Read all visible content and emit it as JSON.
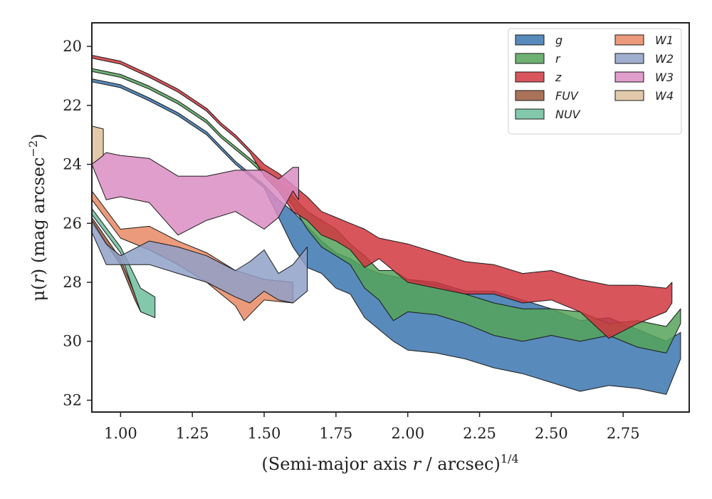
{
  "chart_data": {
    "type": "area",
    "xlabel_prefix": "(Semi-major axis ",
    "xlabel_var": "r",
    "xlabel_suffix": " / arcsec)",
    "xlabel_sup": "1/4",
    "ylabel_prefix": "μ(",
    "ylabel_var": "r",
    "ylabel_suffix": ") (mag arcsec",
    "ylabel_sup": "−2",
    "ylabel_close": ")",
    "xlim": [
      0.9,
      2.98
    ],
    "ylim": [
      32.4,
      19.2
    ],
    "y_inverted": true,
    "xticks": [
      1.0,
      1.25,
      1.5,
      1.75,
      2.0,
      2.25,
      2.5,
      2.75
    ],
    "xtick_labels": [
      "1.00",
      "1.25",
      "1.50",
      "1.75",
      "2.00",
      "2.25",
      "2.50",
      "2.75"
    ],
    "yticks": [
      20,
      22,
      24,
      26,
      28,
      30,
      32
    ],
    "ytick_labels": [
      "20",
      "22",
      "24",
      "26",
      "28",
      "30",
      "32"
    ],
    "grid": false,
    "legend_position": "top-right",
    "legend_columns": 2,
    "series": [
      {
        "name": "g",
        "color": "#3b75af",
        "upper": [
          [
            0.9,
            21.1
          ],
          [
            1.0,
            21.3
          ],
          [
            1.1,
            21.75
          ],
          [
            1.2,
            22.25
          ],
          [
            1.3,
            22.9
          ],
          [
            1.35,
            23.4
          ],
          [
            1.4,
            23.9
          ],
          [
            1.45,
            24.3
          ],
          [
            1.5,
            24.7
          ],
          [
            1.55,
            25.2
          ],
          [
            1.6,
            25.6
          ],
          [
            1.65,
            26.1
          ],
          [
            1.7,
            26.6
          ],
          [
            1.75,
            27.0
          ],
          [
            1.8,
            27.2
          ],
          [
            1.85,
            27.5
          ],
          [
            1.9,
            27.7
          ],
          [
            1.95,
            27.8
          ],
          [
            2.0,
            27.9
          ],
          [
            2.1,
            28.0
          ],
          [
            2.2,
            28.3
          ],
          [
            2.3,
            28.3
          ],
          [
            2.4,
            28.6
          ],
          [
            2.5,
            28.9
          ],
          [
            2.6,
            29.3
          ],
          [
            2.7,
            29.2
          ],
          [
            2.8,
            29.6
          ],
          [
            2.9,
            30.0
          ],
          [
            2.95,
            29.7
          ]
        ],
        "lower": [
          [
            0.9,
            21.2
          ],
          [
            1.0,
            21.4
          ],
          [
            1.1,
            21.85
          ],
          [
            1.2,
            22.35
          ],
          [
            1.3,
            23.0
          ],
          [
            1.35,
            23.5
          ],
          [
            1.4,
            24.0
          ],
          [
            1.45,
            24.4
          ],
          [
            1.5,
            24.8
          ],
          [
            1.55,
            25.8
          ],
          [
            1.6,
            26.8
          ],
          [
            1.65,
            27.5
          ],
          [
            1.7,
            27.7
          ],
          [
            1.75,
            28.2
          ],
          [
            1.8,
            28.4
          ],
          [
            1.85,
            29.2
          ],
          [
            1.9,
            29.6
          ],
          [
            1.95,
            30.0
          ],
          [
            2.0,
            30.3
          ],
          [
            2.1,
            30.4
          ],
          [
            2.2,
            30.6
          ],
          [
            2.3,
            30.9
          ],
          [
            2.4,
            31.1
          ],
          [
            2.5,
            31.4
          ],
          [
            2.6,
            31.7
          ],
          [
            2.7,
            31.5
          ],
          [
            2.8,
            31.6
          ],
          [
            2.9,
            31.8
          ],
          [
            2.95,
            30.6
          ]
        ]
      },
      {
        "name": "r",
        "color": "#55a35a",
        "upper": [
          [
            0.9,
            20.75
          ],
          [
            1.0,
            20.95
          ],
          [
            1.1,
            21.35
          ],
          [
            1.2,
            21.85
          ],
          [
            1.3,
            22.5
          ],
          [
            1.35,
            23.0
          ],
          [
            1.4,
            23.4
          ],
          [
            1.45,
            23.8
          ],
          [
            1.5,
            24.2
          ],
          [
            1.55,
            24.6
          ],
          [
            1.6,
            25.1
          ],
          [
            1.65,
            25.6
          ],
          [
            1.7,
            25.9
          ],
          [
            1.75,
            26.2
          ],
          [
            1.8,
            26.7
          ],
          [
            1.85,
            27.1
          ],
          [
            1.9,
            27.6
          ],
          [
            1.95,
            27.6
          ],
          [
            2.0,
            27.9
          ],
          [
            2.1,
            28.1
          ],
          [
            2.2,
            28.4
          ],
          [
            2.3,
            28.7
          ],
          [
            2.4,
            28.9
          ],
          [
            2.5,
            28.9
          ],
          [
            2.6,
            29.0
          ],
          [
            2.7,
            29.4
          ],
          [
            2.8,
            29.3
          ],
          [
            2.9,
            29.5
          ],
          [
            2.95,
            28.9
          ]
        ],
        "lower": [
          [
            0.9,
            20.85
          ],
          [
            1.0,
            21.05
          ],
          [
            1.1,
            21.45
          ],
          [
            1.2,
            21.95
          ],
          [
            1.3,
            22.6
          ],
          [
            1.35,
            23.1
          ],
          [
            1.4,
            23.5
          ],
          [
            1.45,
            23.9
          ],
          [
            1.5,
            24.35
          ],
          [
            1.55,
            24.8
          ],
          [
            1.6,
            25.4
          ],
          [
            1.65,
            26.2
          ],
          [
            1.7,
            26.8
          ],
          [
            1.75,
            27.1
          ],
          [
            1.8,
            27.4
          ],
          [
            1.85,
            28.2
          ],
          [
            1.9,
            28.6
          ],
          [
            1.95,
            29.3
          ],
          [
            2.0,
            29.0
          ],
          [
            2.1,
            29.1
          ],
          [
            2.2,
            29.4
          ],
          [
            2.3,
            29.8
          ],
          [
            2.4,
            30.0
          ],
          [
            2.5,
            29.8
          ],
          [
            2.6,
            30.0
          ],
          [
            2.7,
            29.8
          ],
          [
            2.8,
            30.2
          ],
          [
            2.9,
            30.4
          ],
          [
            2.95,
            29.4
          ]
        ]
      },
      {
        "name": "z",
        "color": "#d1373f",
        "upper": [
          [
            0.9,
            20.3
          ],
          [
            1.0,
            20.5
          ],
          [
            1.1,
            20.95
          ],
          [
            1.2,
            21.45
          ],
          [
            1.3,
            22.1
          ],
          [
            1.35,
            22.6
          ],
          [
            1.4,
            23.0
          ],
          [
            1.45,
            23.5
          ],
          [
            1.5,
            24.0
          ],
          [
            1.55,
            24.3
          ],
          [
            1.6,
            24.7
          ],
          [
            1.65,
            25.1
          ],
          [
            1.7,
            25.6
          ],
          [
            1.75,
            25.8
          ],
          [
            1.8,
            26.0
          ],
          [
            1.85,
            26.2
          ],
          [
            1.9,
            26.5
          ],
          [
            1.95,
            26.6
          ],
          [
            2.0,
            26.7
          ],
          [
            2.1,
            27.0
          ],
          [
            2.2,
            27.3
          ],
          [
            2.3,
            27.4
          ],
          [
            2.4,
            27.7
          ],
          [
            2.5,
            27.6
          ],
          [
            2.6,
            27.9
          ],
          [
            2.7,
            28.1
          ],
          [
            2.8,
            28.1
          ],
          [
            2.9,
            28.2
          ],
          [
            2.92,
            28.0
          ]
        ],
        "lower": [
          [
            0.9,
            20.4
          ],
          [
            1.0,
            20.6
          ],
          [
            1.1,
            21.05
          ],
          [
            1.2,
            21.55
          ],
          [
            1.3,
            22.2
          ],
          [
            1.35,
            22.7
          ],
          [
            1.4,
            23.1
          ],
          [
            1.45,
            23.6
          ],
          [
            1.5,
            24.4
          ],
          [
            1.55,
            24.9
          ],
          [
            1.6,
            25.6
          ],
          [
            1.65,
            25.9
          ],
          [
            1.7,
            26.4
          ],
          [
            1.75,
            26.6
          ],
          [
            1.8,
            26.9
          ],
          [
            1.85,
            27.5
          ],
          [
            1.9,
            27.2
          ],
          [
            1.95,
            27.6
          ],
          [
            2.0,
            28.0
          ],
          [
            2.1,
            28.2
          ],
          [
            2.2,
            28.4
          ],
          [
            2.3,
            28.4
          ],
          [
            2.4,
            28.7
          ],
          [
            2.5,
            28.6
          ],
          [
            2.6,
            29.0
          ],
          [
            2.7,
            29.9
          ],
          [
            2.8,
            29.4
          ],
          [
            2.9,
            29.0
          ],
          [
            2.92,
            28.7
          ]
        ]
      },
      {
        "name": "FUV",
        "color": "#9b5a3c",
        "upper": [
          [
            0.9,
            25.8
          ],
          [
            1.0,
            27.2
          ],
          [
            1.05,
            28.4
          ],
          [
            1.07,
            29.0
          ]
        ],
        "lower": [
          [
            0.9,
            26.0
          ],
          [
            1.0,
            27.4
          ],
          [
            1.05,
            28.6
          ],
          [
            1.07,
            29.0
          ]
        ]
      },
      {
        "name": "NUV",
        "color": "#6ebe9e",
        "upper": [
          [
            0.9,
            25.5
          ],
          [
            1.0,
            26.8
          ],
          [
            1.07,
            28.2
          ],
          [
            1.12,
            28.5
          ]
        ],
        "lower": [
          [
            0.9,
            25.7
          ],
          [
            1.0,
            27.0
          ],
          [
            1.07,
            29.0
          ],
          [
            1.12,
            29.2
          ]
        ]
      },
      {
        "name": "W1",
        "color": "#e88a64",
        "upper": [
          [
            0.9,
            24.9
          ],
          [
            1.0,
            26.2
          ],
          [
            1.1,
            26.1
          ],
          [
            1.2,
            26.6
          ],
          [
            1.3,
            27.0
          ],
          [
            1.4,
            27.6
          ],
          [
            1.5,
            27.9
          ],
          [
            1.6,
            28.0
          ]
        ],
        "lower": [
          [
            0.9,
            25.2
          ],
          [
            1.0,
            26.5
          ],
          [
            1.1,
            26.9
          ],
          [
            1.2,
            27.4
          ],
          [
            1.3,
            28.0
          ],
          [
            1.4,
            28.8
          ],
          [
            1.43,
            29.3
          ],
          [
            1.5,
            28.6
          ],
          [
            1.6,
            28.7
          ]
        ]
      },
      {
        "name": "W2",
        "color": "#8fa0c8",
        "upper": [
          [
            0.9,
            25.9
          ],
          [
            0.95,
            26.7
          ],
          [
            1.0,
            27.1
          ],
          [
            1.1,
            26.6
          ],
          [
            1.2,
            26.8
          ],
          [
            1.3,
            27.1
          ],
          [
            1.4,
            27.6
          ],
          [
            1.45,
            27.3
          ],
          [
            1.5,
            26.9
          ],
          [
            1.55,
            27.7
          ],
          [
            1.6,
            27.4
          ],
          [
            1.65,
            26.8
          ]
        ],
        "lower": [
          [
            0.9,
            26.3
          ],
          [
            0.95,
            27.4
          ],
          [
            1.0,
            27.4
          ],
          [
            1.1,
            27.4
          ],
          [
            1.2,
            27.7
          ],
          [
            1.3,
            28.0
          ],
          [
            1.4,
            28.5
          ],
          [
            1.45,
            28.7
          ],
          [
            1.5,
            28.3
          ],
          [
            1.55,
            28.6
          ],
          [
            1.6,
            28.7
          ],
          [
            1.65,
            28.3
          ]
        ]
      },
      {
        "name": "W3",
        "color": "#da8dc3",
        "upper": [
          [
            0.9,
            24.0
          ],
          [
            0.95,
            23.6
          ],
          [
            1.0,
            23.7
          ],
          [
            1.1,
            23.8
          ],
          [
            1.2,
            24.4
          ],
          [
            1.3,
            24.4
          ],
          [
            1.4,
            24.2
          ],
          [
            1.5,
            24.2
          ],
          [
            1.55,
            24.5
          ],
          [
            1.6,
            24.1
          ],
          [
            1.62,
            24.1
          ]
        ],
        "lower": [
          [
            0.9,
            24.0
          ],
          [
            0.95,
            25.2
          ],
          [
            1.0,
            25.1
          ],
          [
            1.1,
            25.3
          ],
          [
            1.2,
            26.4
          ],
          [
            1.3,
            25.9
          ],
          [
            1.4,
            25.6
          ],
          [
            1.5,
            26.2
          ],
          [
            1.55,
            25.8
          ],
          [
            1.6,
            24.9
          ],
          [
            1.62,
            25.2
          ]
        ]
      },
      {
        "name": "W4",
        "color": "#dcbf9a",
        "upper": [
          [
            0.9,
            22.7
          ],
          [
            0.94,
            22.8
          ]
        ],
        "lower": [
          [
            0.9,
            24.0
          ],
          [
            0.94,
            23.7
          ]
        ]
      }
    ]
  }
}
